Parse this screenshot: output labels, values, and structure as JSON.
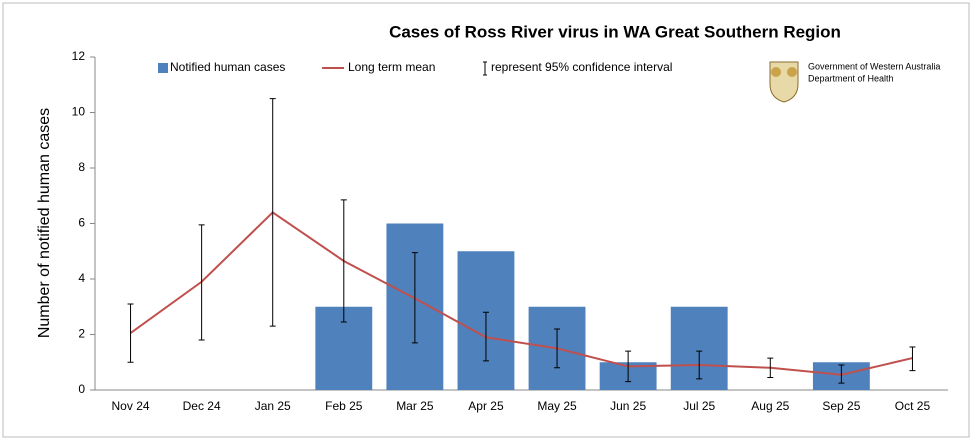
{
  "chart_data": {
    "type": "bar",
    "title": "Cases of Ross River virus in WA  Great Southern Region",
    "y_label": "Number of notified human cases",
    "legend_note": "represent 95% confidence interval",
    "logo": {
      "line1": "Government of Western Australia",
      "line2": "Department of Health"
    },
    "categories": [
      "Nov 24",
      "Dec 24",
      "Jan 25",
      "Feb 25",
      "Mar 25",
      "Apr 25",
      "May 25",
      "Jun 25",
      "Jul 25",
      "Aug 25",
      "Sep 25",
      "Oct 25"
    ],
    "series": [
      {
        "name": "Notified human cases",
        "type": "bar",
        "color": "#4f81bd",
        "values": [
          0,
          0,
          0,
          3,
          6,
          5,
          3,
          1,
          3,
          0,
          1,
          0
        ]
      },
      {
        "name": "Long term mean",
        "type": "line",
        "color": "#c0504d",
        "values": [
          2.05,
          3.9,
          6.4,
          4.65,
          3.3,
          1.9,
          1.5,
          0.85,
          0.9,
          0.8,
          0.55,
          1.15
        ],
        "ci_low": [
          1.0,
          1.8,
          2.3,
          2.45,
          1.7,
          1.05,
          0.8,
          0.3,
          0.4,
          0.45,
          0.25,
          0.7
        ],
        "ci_high": [
          3.1,
          5.95,
          10.5,
          6.85,
          4.95,
          2.8,
          2.2,
          1.4,
          1.4,
          1.15,
          0.9,
          1.55
        ]
      }
    ],
    "ylim": [
      0,
      12
    ],
    "yticks": [
      0,
      2,
      4,
      6,
      8,
      10,
      12
    ],
    "grid": false
  }
}
